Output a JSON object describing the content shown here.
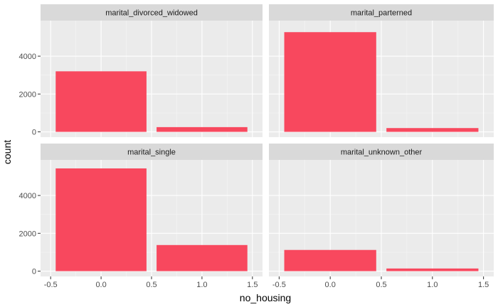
{
  "chart_data": {
    "type": "bar",
    "xlabel": "no_housing",
    "ylabel": "count",
    "xlim": [
      -0.5,
      1.5
    ],
    "ylim": [
      0,
      5600
    ],
    "x_ticks": [
      -0.5,
      0.0,
      0.5,
      1.0,
      1.5
    ],
    "x_tick_labels": [
      "-0.5",
      "0.0",
      "0.5",
      "1.0",
      "1.5"
    ],
    "y_ticks": [
      0,
      2000,
      4000
    ],
    "y_tick_labels": [
      "0",
      "2000",
      "4000"
    ],
    "bar_color": "#f8485e",
    "grid": true,
    "panels": [
      {
        "name": "marital_divorced_widowed",
        "bars": [
          {
            "x": 0,
            "count": 3200
          },
          {
            "x": 1,
            "count": 250
          }
        ]
      },
      {
        "name": "marital_parterned",
        "bars": [
          {
            "x": 0,
            "count": 5270
          },
          {
            "x": 1,
            "count": 200
          }
        ]
      },
      {
        "name": "marital_single",
        "bars": [
          {
            "x": 0,
            "count": 5430
          },
          {
            "x": 1,
            "count": 1380
          }
        ]
      },
      {
        "name": "marital_unknown_other",
        "bars": [
          {
            "x": 0,
            "count": 1120
          },
          {
            "x": 1,
            "count": 140
          }
        ]
      }
    ]
  }
}
